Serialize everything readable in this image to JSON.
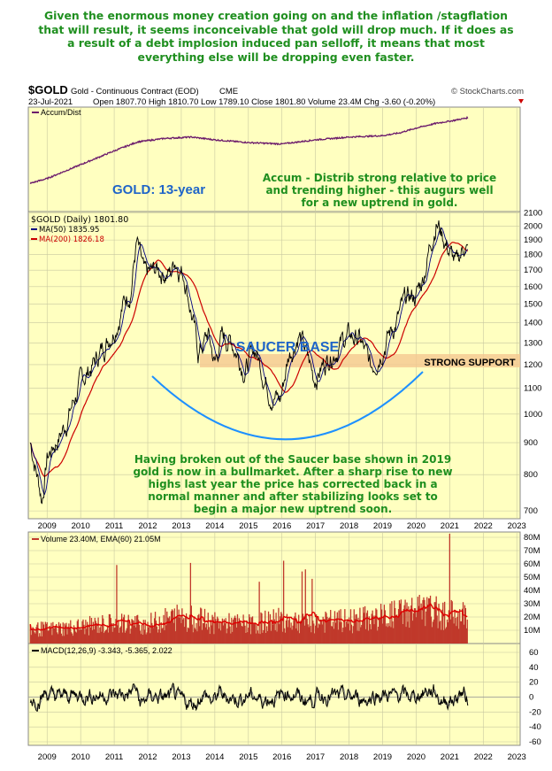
{
  "headline": [
    "Given the enormous money creation going on and the inflation /stagflation",
    "that will result, it seems inconceivable that gold will drop much. If it does as",
    "a result of a debt implosion induced  pan selloff, it means that most",
    "everything else will be dropping even faster."
  ],
  "header": {
    "symbol": "$GOLD",
    "name": "Gold - Continuous Contract (EOD)",
    "exchange": "CME",
    "credit": "© StockCharts.com",
    "date": "23-Jul-2021",
    "open_label": "Open",
    "open": "1807.70",
    "high_label": "High",
    "high": "1810.70",
    "low_label": "Low",
    "low": "1789.10",
    "close_label": "Close",
    "close": "1801.80",
    "volume_label": "Volume",
    "volume": "23.4M",
    "chg_label": "Chg",
    "chg": "-3.60 (-0.20%)"
  },
  "colors": {
    "panel_bg": "#ffffc0",
    "price": "#000000",
    "ma50": "#000080",
    "ma200": "#cc0000",
    "accum": "#6b1a6b",
    "volume": "#c0392b",
    "annotation_green": "#1f8f1f",
    "annotation_blue": "#1e64c8",
    "saucer": "#1e90ff",
    "support_band": "#f5c890"
  },
  "annotations": {
    "gold_title": "GOLD: 13-year",
    "accum_note": [
      "Accum - Distrib strong relative to price",
      "and trending higher - this augurs well",
      "for a new uptrend in gold."
    ],
    "saucer_label": "SAUCER BASE",
    "support_label": "STRONG SUPPORT",
    "breakout_note": [
      "Having broken out of the Saucer base shown in 2019",
      "gold is now in a bullmarket. After a sharp rise to new",
      "highs last year the price has corrected back in a",
      "normal manner and after stabilizing looks set to",
      "begin a major new uptrend soon."
    ]
  },
  "chart_data": [
    {
      "type": "line",
      "panel": "accum_dist",
      "legend": [
        "Accum/Dist"
      ],
      "x": [
        2008.5,
        2009.0,
        2010.0,
        2011.0,
        2011.7,
        2012.5,
        2013.3,
        2014.0,
        2015.0,
        2016.0,
        2017.0,
        2018.0,
        2019.0,
        2019.5,
        2020.0,
        2020.6,
        2021.0,
        2021.55
      ],
      "values": [
        0.05,
        0.12,
        0.32,
        0.52,
        0.65,
        0.7,
        0.72,
        0.68,
        0.64,
        0.62,
        0.68,
        0.72,
        0.74,
        0.78,
        0.85,
        0.92,
        0.95,
        1.0
      ]
    },
    {
      "type": "line",
      "panel": "price",
      "legend": [
        "$GOLD (Daily) 1801.80",
        "MA(50) 1835.95",
        "MA(200) 1826.18"
      ],
      "x": [
        2008.5,
        2008.85,
        2009.0,
        2009.5,
        2010.0,
        2010.5,
        2011.0,
        2011.5,
        2011.67,
        2011.9,
        2012.3,
        2012.7,
        2012.8,
        2013.1,
        2013.5,
        2013.8,
        2014.0,
        2014.2,
        2014.5,
        2014.9,
        2015.2,
        2015.6,
        2015.95,
        2016.2,
        2016.5,
        2016.95,
        2017.5,
        2017.95,
        2018.3,
        2018.65,
        2019.0,
        2019.4,
        2019.7,
        2020.0,
        2020.2,
        2020.6,
        2020.9,
        2021.2,
        2021.45,
        2021.55
      ],
      "series": [
        {
          "values": [
            900,
            730,
            850,
            950,
            1120,
            1230,
            1380,
            1600,
            1880,
            1650,
            1700,
            1680,
            1780,
            1670,
            1250,
            1340,
            1200,
            1330,
            1310,
            1180,
            1270,
            1100,
            1050,
            1240,
            1350,
            1140,
            1260,
            1330,
            1320,
            1180,
            1290,
            1400,
            1520,
            1550,
            1650,
            2050,
            1870,
            1720,
            1880,
            1800
          ]
        }
      ],
      "ylim": [
        680,
        2110
      ],
      "yticks": [
        700,
        800,
        900,
        1000,
        1100,
        1200,
        1300,
        1400,
        1500,
        1600,
        1700,
        1800,
        1900,
        2000,
        2100
      ],
      "xticks": [
        "2009",
        "2010",
        "2011",
        "2012",
        "2013",
        "2014",
        "2015",
        "2016",
        "2017",
        "2018",
        "2019",
        "2020",
        "2021",
        "2022",
        "2023"
      ]
    },
    {
      "type": "bar",
      "panel": "volume",
      "legend": [
        "Volume 23.40M, EMA(60) 21.05M"
      ],
      "x": [
        2009,
        2010,
        2011,
        2012,
        2013,
        2014,
        2015,
        2016,
        2017,
        2018,
        2019,
        2020,
        2021
      ],
      "values": [
        12,
        14,
        17,
        16,
        23,
        17,
        16,
        20,
        18,
        19,
        22,
        28,
        24
      ],
      "ylim": [
        0,
        80
      ],
      "yticks": [
        "10M",
        "20M",
        "30M",
        "40M",
        "50M",
        "60M",
        "70M",
        "80M"
      ]
    },
    {
      "type": "line",
      "panel": "macd",
      "legend": [
        "MACD(12,26,9) -3.343, -5.365, 2.022"
      ],
      "ylim": [
        -60,
        60
      ],
      "yticks": [
        -60,
        -40,
        -20,
        0,
        20,
        40,
        60
      ]
    }
  ]
}
